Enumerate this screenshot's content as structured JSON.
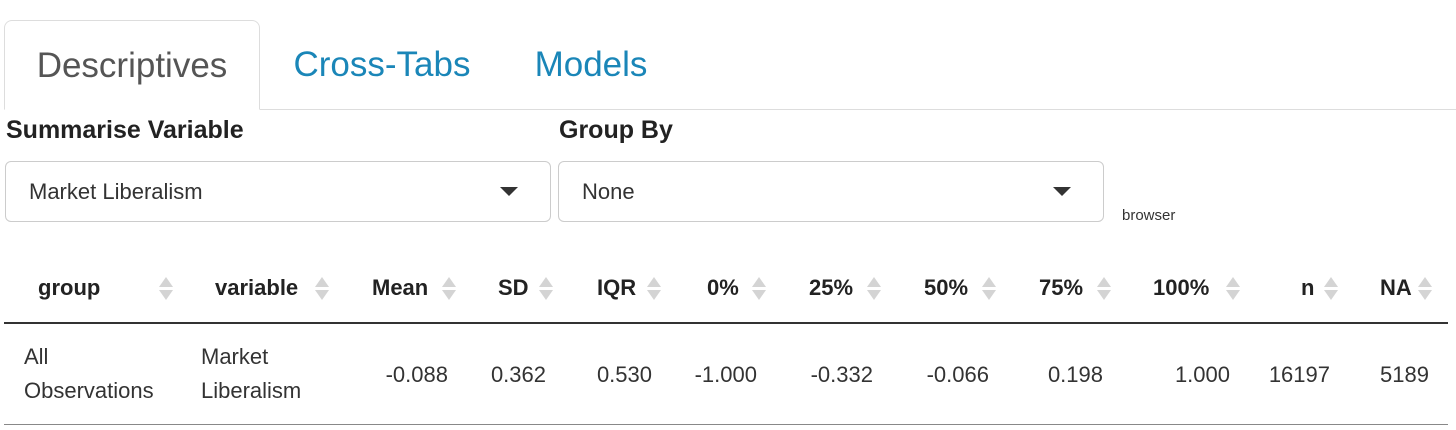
{
  "tabs": [
    {
      "label": "Descriptives",
      "active": true
    },
    {
      "label": "Cross-Tabs",
      "active": false
    },
    {
      "label": "Models",
      "active": false
    }
  ],
  "form": {
    "summarise": {
      "label": "Summarise Variable",
      "value": "Market Liberalism"
    },
    "group_by": {
      "label": "Group By",
      "value": "None"
    },
    "note": "browser"
  },
  "table": {
    "headers": [
      "group",
      "variable",
      "Mean",
      "SD",
      "IQR",
      "0%",
      "25%",
      "50%",
      "75%",
      "100%",
      "n",
      "NA"
    ],
    "rows": [
      {
        "group_line1": "All",
        "group_line2": "Observations",
        "variable_line1": "Market",
        "variable_line2": "Liberalism",
        "mean": "-0.088",
        "sd": "0.362",
        "iqr": "0.530",
        "p0": "-1.000",
        "p25": "-0.332",
        "p50": "-0.066",
        "p75": "0.198",
        "p100": "1.000",
        "n": "16197",
        "na": "5189"
      }
    ]
  },
  "colors": {
    "link": "#1a86b8",
    "active_tab_text": "#555555",
    "sort_icon": "#d4d4d4"
  }
}
